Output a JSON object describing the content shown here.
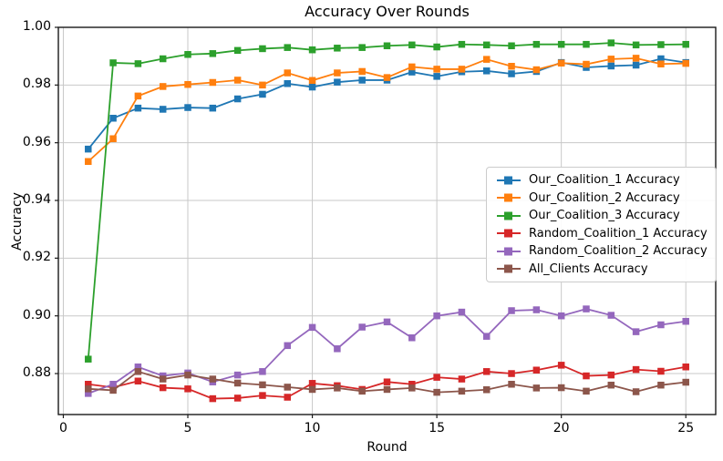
{
  "chart_data": {
    "type": "line",
    "title": "Accuracy Over Rounds",
    "xlabel": "Round",
    "ylabel": "Accuracy",
    "marker": "square",
    "grid": true,
    "legend_position": "center right",
    "xlim": [
      -0.2,
      26.2
    ],
    "ylim": [
      0.8658,
      1.0
    ],
    "xticks": [
      0,
      5,
      10,
      15,
      20,
      25
    ],
    "yticks": [
      0.88,
      0.9,
      0.92,
      0.94,
      0.96,
      0.98,
      1.0
    ],
    "x": [
      1,
      2,
      3,
      4,
      5,
      6,
      7,
      8,
      9,
      10,
      11,
      12,
      13,
      14,
      15,
      16,
      17,
      18,
      19,
      20,
      21,
      22,
      23,
      24,
      25
    ],
    "series": [
      {
        "name": "Our_Coalition_1 Accuracy",
        "color": "#1f77b4",
        "values": [
          0.9578,
          0.9685,
          0.972,
          0.9716,
          0.9722,
          0.972,
          0.9752,
          0.9768,
          0.9805,
          0.9793,
          0.981,
          0.9817,
          0.9817,
          0.9845,
          0.983,
          0.9846,
          0.9849,
          0.9839,
          0.9847,
          0.9878,
          0.9861,
          0.9866,
          0.9869,
          0.9891,
          0.9878
        ]
      },
      {
        "name": "Our_Coalition_2 Accuracy",
        "color": "#ff7f0e",
        "values": [
          0.9535,
          0.9614,
          0.9762,
          0.9795,
          0.9802,
          0.9809,
          0.9817,
          0.98,
          0.9842,
          0.9816,
          0.9842,
          0.9847,
          0.9826,
          0.9863,
          0.9855,
          0.9855,
          0.9889,
          0.9865,
          0.9853,
          0.9876,
          0.9872,
          0.989,
          0.9893,
          0.9873,
          0.9875
        ]
      },
      {
        "name": "Our_Coalition_3 Accuracy",
        "color": "#2ca02c",
        "values": [
          0.885,
          0.9877,
          0.9874,
          0.9891,
          0.9906,
          0.9909,
          0.992,
          0.9926,
          0.993,
          0.9922,
          0.9928,
          0.993,
          0.9936,
          0.9939,
          0.9932,
          0.9941,
          0.9939,
          0.9936,
          0.9941,
          0.9941,
          0.9941,
          0.9946,
          0.9939,
          0.994,
          0.9941
        ]
      },
      {
        "name": "Random_Coalition_1 Accuracy",
        "color": "#d62728",
        "values": [
          0.8763,
          0.8752,
          0.8774,
          0.8751,
          0.8747,
          0.8713,
          0.8715,
          0.8724,
          0.8718,
          0.8766,
          0.8758,
          0.8745,
          0.8771,
          0.8763,
          0.8787,
          0.8781,
          0.8807,
          0.88,
          0.8812,
          0.8829,
          0.8792,
          0.8795,
          0.8814,
          0.8808,
          0.8823
        ]
      },
      {
        "name": "Random_Coalition_2 Accuracy",
        "color": "#9467bd",
        "values": [
          0.8731,
          0.8763,
          0.8823,
          0.8792,
          0.8802,
          0.8771,
          0.8795,
          0.8807,
          0.8897,
          0.896,
          0.8886,
          0.8961,
          0.8979,
          0.8924,
          0.9,
          0.9013,
          0.8929,
          0.9018,
          0.9021,
          0.9,
          0.9024,
          0.9002,
          0.8945,
          0.8969,
          0.8981
        ]
      },
      {
        "name": "All_Clients Accuracy",
        "color": "#8c564b",
        "values": [
          0.8747,
          0.8742,
          0.8807,
          0.8781,
          0.8795,
          0.8781,
          0.8767,
          0.8761,
          0.8753,
          0.8745,
          0.875,
          0.8739,
          0.8745,
          0.875,
          0.8735,
          0.8739,
          0.8744,
          0.8763,
          0.875,
          0.8751,
          0.8739,
          0.876,
          0.8737,
          0.876,
          0.877
        ]
      }
    ],
    "style": {
      "grid_color": "#c8c8c8",
      "spine_color": "#1a1a1a",
      "background": "#ffffff"
    }
  }
}
